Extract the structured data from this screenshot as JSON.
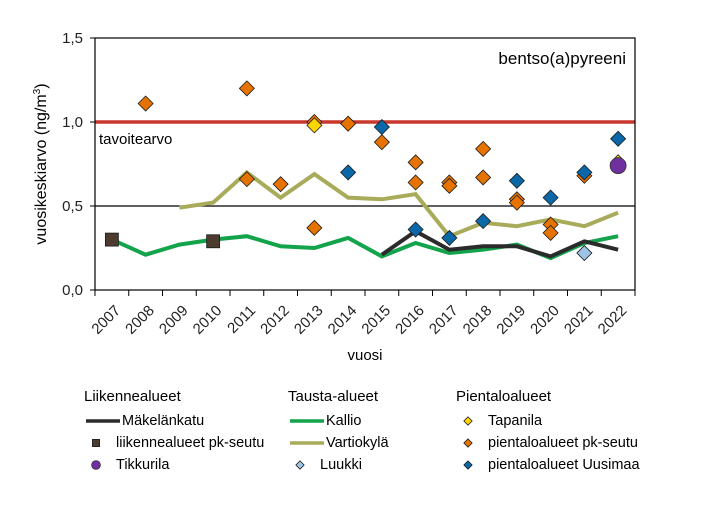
{
  "chart_data": {
    "type": "line",
    "title": "bentso(a)pyreeni",
    "xlabel": "vuosi",
    "ylabel": "vuosikeskiarvo (ng/m³)",
    "ylabel_main": "vuosikeskiarvo (ng/m",
    "ylabel_sup": "3",
    "ylabel_end": ")",
    "ylim": [
      0,
      1.5
    ],
    "yticks": [
      "0,0",
      "0,5",
      "1,0",
      "1,5"
    ],
    "ytick_values": [
      0,
      0.5,
      1.0,
      1.5
    ],
    "categories": [
      "2007",
      "2008",
      "2009",
      "2010",
      "2011",
      "2012",
      "2013",
      "2014",
      "2015",
      "2016",
      "2017",
      "2018",
      "2019",
      "2020",
      "2021",
      "2022"
    ],
    "grid": "horizontal line at 0,5",
    "target": {
      "label": "tavoitearvo",
      "value": 1.0,
      "color": "#c8382e"
    },
    "legend_groups": [
      {
        "title": "Liikennealueet",
        "items": [
          {
            "name": "Mäkelänkatu",
            "kind": "line",
            "color": "#2b2b2b"
          },
          {
            "name": "liikennealueet pk-seutu",
            "kind": "square",
            "color": "#4d3b2f"
          },
          {
            "name": "Tikkurila",
            "kind": "circle",
            "color": "#7030a0"
          }
        ]
      },
      {
        "title": "Tausta-alueet",
        "items": [
          {
            "name": "Kallio",
            "kind": "line",
            "color": "#13a34a"
          },
          {
            "name": "Vartiokylä",
            "kind": "line",
            "color": "#a8ab5a"
          },
          {
            "name": "Luukki",
            "kind": "diamond",
            "color": "#9dc3e6"
          }
        ]
      },
      {
        "title": "Pientaloalueet",
        "items": [
          {
            "name": "Tapanila",
            "kind": "diamond",
            "color": "#ffd600"
          },
          {
            "name": "pientaloalueet pk-seutu",
            "kind": "diamond",
            "color": "#e67300"
          },
          {
            "name": "pientaloalueet Uusimaa",
            "kind": "diamond",
            "color": "#0b68a8"
          }
        ]
      }
    ],
    "series": [
      {
        "name": "Kallio",
        "kind": "line",
        "color": "#13a34a",
        "values": [
          0.3,
          0.21,
          0.27,
          0.3,
          0.32,
          0.26,
          0.25,
          0.31,
          0.2,
          0.28,
          0.22,
          0.24,
          0.27,
          0.19,
          0.28,
          0.32
        ]
      },
      {
        "name": "Vartiokylä",
        "kind": "line",
        "color": "#a8ab5a",
        "values": [
          null,
          null,
          0.49,
          0.52,
          0.7,
          0.55,
          0.69,
          0.55,
          0.54,
          0.57,
          0.32,
          0.4,
          0.38,
          0.42,
          0.38,
          0.46
        ]
      },
      {
        "name": "Mäkelänkatu",
        "kind": "line",
        "color": "#2b2b2b",
        "values": [
          null,
          null,
          null,
          null,
          null,
          null,
          null,
          null,
          0.21,
          0.35,
          0.24,
          0.26,
          0.26,
          0.2,
          0.29,
          0.24
        ]
      },
      {
        "name": "liikennealueet pk-seutu",
        "kind": "square",
        "color": "#4d3b2f",
        "points": [
          {
            "x": "2007",
            "y": 0.3
          },
          {
            "x": "2010",
            "y": 0.29
          }
        ]
      },
      {
        "name": "Tapanila",
        "kind": "diamond",
        "color": "#ffd600",
        "points": [
          {
            "x": "2013",
            "y": 0.98
          },
          {
            "x": "2022",
            "y": 0.76
          }
        ]
      },
      {
        "name": "Tikkurila",
        "kind": "circle",
        "color": "#7030a0",
        "points": [
          {
            "x": "2022",
            "y": 0.74
          }
        ]
      },
      {
        "name": "pientaloalueet pk-seutu",
        "kind": "diamond",
        "color": "#e67300",
        "points": [
          {
            "x": "2008",
            "y": 1.11
          },
          {
            "x": "2011",
            "y": 1.2
          },
          {
            "x": "2011",
            "y": 0.66
          },
          {
            "x": "2012",
            "y": 0.63
          },
          {
            "x": "2013",
            "y": 1.0
          },
          {
            "x": "2013",
            "y": 0.37
          },
          {
            "x": "2014",
            "y": 0.99
          },
          {
            "x": "2015",
            "y": 0.88
          },
          {
            "x": "2016",
            "y": 0.76
          },
          {
            "x": "2016",
            "y": 0.64
          },
          {
            "x": "2017",
            "y": 0.64
          },
          {
            "x": "2017",
            "y": 0.62
          },
          {
            "x": "2018",
            "y": 0.84
          },
          {
            "x": "2018",
            "y": 0.67
          },
          {
            "x": "2019",
            "y": 0.54
          },
          {
            "x": "2019",
            "y": 0.52
          },
          {
            "x": "2020",
            "y": 0.39
          },
          {
            "x": "2020",
            "y": 0.34
          },
          {
            "x": "2021",
            "y": 0.68
          }
        ]
      },
      {
        "name": "pientaloalueet Uusimaa",
        "kind": "diamond",
        "color": "#0b68a8",
        "points": [
          {
            "x": "2014",
            "y": 0.7
          },
          {
            "x": "2015",
            "y": 0.97
          },
          {
            "x": "2016",
            "y": 0.36
          },
          {
            "x": "2017",
            "y": 0.31
          },
          {
            "x": "2018",
            "y": 0.41
          },
          {
            "x": "2019",
            "y": 0.65
          },
          {
            "x": "2020",
            "y": 0.55
          },
          {
            "x": "2021",
            "y": 0.7
          },
          {
            "x": "2022",
            "y": 0.9
          }
        ]
      },
      {
        "name": "Luukki",
        "kind": "diamond",
        "color": "#9dc3e6",
        "points": [
          {
            "x": "2021",
            "y": 0.22
          }
        ]
      }
    ],
    "draw_order": [
      "Kallio",
      "Vartiokylä",
      "Mäkelänkatu",
      "liikennealueet pk-seutu",
      "pientaloalueet pk-seutu",
      "Tapanila",
      "Tikkurila",
      "pientaloalueet Uusimaa",
      "Luukki"
    ]
  }
}
